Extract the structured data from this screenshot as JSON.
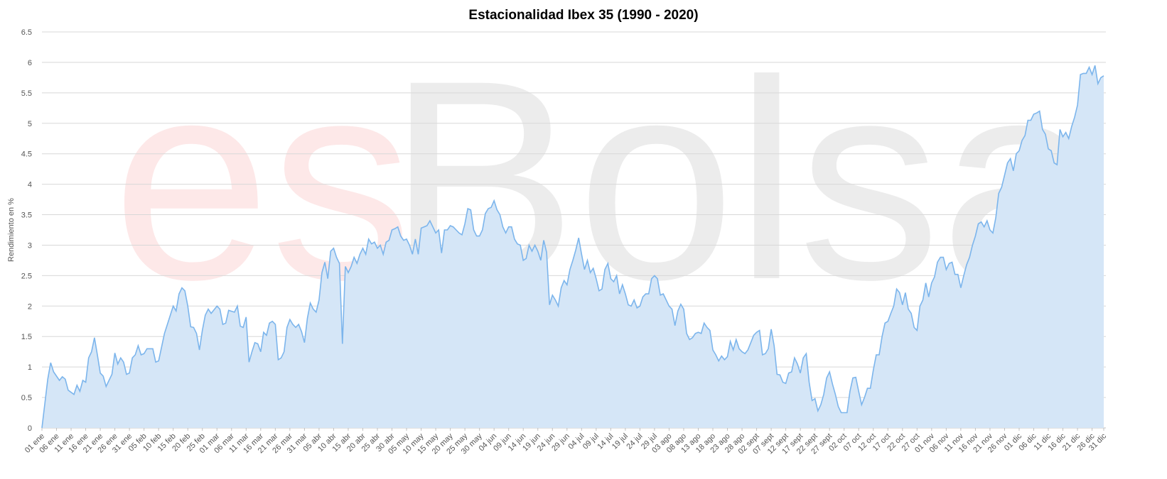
{
  "watermark": {
    "part1": "es",
    "part2": "Bolsa",
    "color1": "#fde8e8",
    "color2": "#ececec"
  },
  "colors": {
    "line": "#7cb5ec",
    "area": "#d5e6f7",
    "grid": "#d8d8d8"
  },
  "chart_data": {
    "type": "area",
    "title": "Estacionalidad Ibex 35 (1990 - 2020)",
    "xlabel": "",
    "ylabel": "Rendimiento en %",
    "ylim": [
      0,
      6.5
    ],
    "yticks": [
      "0",
      "0.5",
      "1",
      "1.5",
      "2",
      "2.5",
      "3",
      "3.5",
      "4",
      "4.5",
      "5",
      "5.5",
      "6",
      "6.5"
    ],
    "grid": true,
    "categories": [
      "01 ene",
      "06 ene",
      "11 ene",
      "16 ene",
      "21 ene",
      "26 ene",
      "31 ene",
      "05 feb",
      "10 feb",
      "15 feb",
      "20 feb",
      "25 feb",
      "01 mar",
      "06 mar",
      "11 mar",
      "16 mar",
      "21 mar",
      "26 mar",
      "31 mar",
      "05 abr",
      "10 abr",
      "15 abr",
      "20 abr",
      "25 abr",
      "30 abr",
      "05 may",
      "10 may",
      "15 may",
      "20 may",
      "25 may",
      "30 may",
      "04 jun",
      "09 jun",
      "14 jun",
      "19 jun",
      "24 jun",
      "29 jun",
      "04 jul",
      "09 jul",
      "14 jul",
      "19 jul",
      "24 jul",
      "29 jul",
      "03 ago",
      "08 ago",
      "13 ago",
      "18 ago",
      "23 ago",
      "28 ago",
      "02 sept",
      "07 sept",
      "12 sept",
      "17 sept",
      "22 sept",
      "27 sept",
      "02 oct",
      "07 oct",
      "12 oct",
      "17 oct",
      "22 oct",
      "27 oct",
      "01 nov",
      "06 nov",
      "11 nov",
      "16 nov",
      "21 nov",
      "26 nov",
      "01 dic",
      "06 dic",
      "11 dic",
      "16 dic",
      "21 dic",
      "26 dic",
      "31 dic"
    ],
    "keypoints": [
      [
        0,
        0.0
      ],
      [
        2,
        0.8
      ],
      [
        3,
        1.07
      ],
      [
        4,
        0.92
      ],
      [
        6,
        0.78
      ],
      [
        7,
        0.84
      ],
      [
        8,
        0.8
      ],
      [
        9,
        0.62
      ],
      [
        11,
        0.55
      ],
      [
        12,
        0.7
      ],
      [
        13,
        0.6
      ],
      [
        14,
        0.78
      ],
      [
        15,
        0.75
      ],
      [
        16,
        1.15
      ],
      [
        17,
        1.25
      ],
      [
        18,
        1.48
      ],
      [
        19,
        1.2
      ],
      [
        20,
        0.9
      ],
      [
        21,
        0.85
      ],
      [
        22,
        0.68
      ],
      [
        24,
        0.88
      ],
      [
        25,
        1.23
      ],
      [
        26,
        1.05
      ],
      [
        27,
        1.15
      ],
      [
        28,
        1.08
      ],
      [
        29,
        0.88
      ],
      [
        30,
        0.9
      ],
      [
        31,
        1.15
      ],
      [
        32,
        1.2
      ],
      [
        33,
        1.35
      ],
      [
        34,
        1.2
      ],
      [
        35,
        1.22
      ],
      [
        36,
        1.3
      ],
      [
        38,
        1.3
      ],
      [
        39,
        1.08
      ],
      [
        40,
        1.1
      ],
      [
        42,
        1.55
      ],
      [
        44,
        1.85
      ],
      [
        45,
        2.0
      ],
      [
        46,
        1.92
      ],
      [
        47,
        2.2
      ],
      [
        48,
        2.3
      ],
      [
        49,
        2.25
      ],
      [
        50,
        2.0
      ],
      [
        51,
        1.66
      ],
      [
        52,
        1.65
      ],
      [
        53,
        1.55
      ],
      [
        54,
        1.28
      ],
      [
        55,
        1.6
      ],
      [
        56,
        1.85
      ],
      [
        57,
        1.95
      ],
      [
        58,
        1.88
      ],
      [
        60,
        2.0
      ],
      [
        61,
        1.95
      ],
      [
        62,
        1.7
      ],
      [
        63,
        1.72
      ],
      [
        64,
        1.93
      ],
      [
        66,
        1.9
      ],
      [
        67,
        2.0
      ],
      [
        68,
        1.67
      ],
      [
        69,
        1.65
      ],
      [
        70,
        1.82
      ],
      [
        71,
        1.08
      ],
      [
        72,
        1.25
      ],
      [
        73,
        1.4
      ],
      [
        74,
        1.38
      ],
      [
        75,
        1.25
      ],
      [
        76,
        1.57
      ],
      [
        77,
        1.52
      ],
      [
        78,
        1.72
      ],
      [
        79,
        1.75
      ],
      [
        80,
        1.7
      ],
      [
        81,
        1.12
      ],
      [
        82,
        1.15
      ],
      [
        83,
        1.25
      ],
      [
        84,
        1.65
      ],
      [
        85,
        1.78
      ],
      [
        86,
        1.7
      ],
      [
        87,
        1.65
      ],
      [
        88,
        1.7
      ],
      [
        89,
        1.58
      ],
      [
        90,
        1.4
      ],
      [
        91,
        1.8
      ],
      [
        92,
        2.05
      ],
      [
        93,
        1.95
      ],
      [
        94,
        1.9
      ],
      [
        95,
        2.1
      ],
      [
        96,
        2.55
      ],
      [
        97,
        2.72
      ],
      [
        98,
        2.45
      ],
      [
        99,
        2.9
      ],
      [
        100,
        2.95
      ],
      [
        101,
        2.8
      ],
      [
        102,
        2.7
      ],
      [
        103,
        1.38
      ],
      [
        104,
        2.65
      ],
      [
        105,
        2.55
      ],
      [
        106,
        2.65
      ],
      [
        107,
        2.8
      ],
      [
        108,
        2.7
      ],
      [
        109,
        2.85
      ],
      [
        110,
        2.95
      ],
      [
        111,
        2.85
      ],
      [
        112,
        3.1
      ],
      [
        113,
        3.02
      ],
      [
        114,
        3.05
      ],
      [
        115,
        2.95
      ],
      [
        116,
        3.0
      ],
      [
        117,
        2.85
      ],
      [
        118,
        3.05
      ],
      [
        119,
        3.08
      ],
      [
        120,
        3.25
      ],
      [
        121,
        3.27
      ],
      [
        122,
        3.3
      ],
      [
        123,
        3.15
      ],
      [
        124,
        3.08
      ],
      [
        125,
        3.1
      ],
      [
        126,
        3.0
      ],
      [
        127,
        2.85
      ],
      [
        128,
        3.1
      ],
      [
        129,
        2.85
      ],
      [
        130,
        3.28
      ],
      [
        131,
        3.3
      ],
      [
        132,
        3.32
      ],
      [
        133,
        3.4
      ],
      [
        134,
        3.3
      ],
      [
        135,
        3.2
      ],
      [
        136,
        3.25
      ],
      [
        137,
        2.87
      ],
      [
        138,
        3.25
      ],
      [
        139,
        3.25
      ],
      [
        140,
        3.32
      ],
      [
        141,
        3.3
      ],
      [
        142,
        3.25
      ],
      [
        143,
        3.2
      ],
      [
        144,
        3.17
      ],
      [
        145,
        3.35
      ],
      [
        146,
        3.6
      ],
      [
        147,
        3.58
      ],
      [
        148,
        3.25
      ],
      [
        149,
        3.15
      ],
      [
        150,
        3.15
      ],
      [
        151,
        3.25
      ],
      [
        152,
        3.52
      ],
      [
        153,
        3.6
      ],
      [
        154,
        3.62
      ],
      [
        155,
        3.73
      ],
      [
        156,
        3.58
      ],
      [
        157,
        3.5
      ],
      [
        158,
        3.3
      ],
      [
        159,
        3.2
      ],
      [
        160,
        3.3
      ],
      [
        161,
        3.3
      ],
      [
        162,
        3.1
      ],
      [
        163,
        3.02
      ],
      [
        164,
        3.0
      ],
      [
        165,
        2.75
      ],
      [
        166,
        2.78
      ],
      [
        167,
        3.0
      ],
      [
        168,
        2.9
      ],
      [
        169,
        3.0
      ],
      [
        170,
        2.9
      ],
      [
        171,
        2.75
      ],
      [
        172,
        3.08
      ],
      [
        173,
        2.88
      ],
      [
        174,
        2.02
      ],
      [
        175,
        2.18
      ],
      [
        176,
        2.1
      ],
      [
        177,
        2.0
      ],
      [
        178,
        2.3
      ],
      [
        179,
        2.42
      ],
      [
        180,
        2.35
      ],
      [
        181,
        2.6
      ],
      [
        182,
        2.75
      ],
      [
        183,
        2.92
      ],
      [
        184,
        3.12
      ],
      [
        185,
        2.85
      ],
      [
        186,
        2.6
      ],
      [
        187,
        2.75
      ],
      [
        188,
        2.55
      ],
      [
        189,
        2.62
      ],
      [
        190,
        2.45
      ],
      [
        191,
        2.25
      ],
      [
        192,
        2.28
      ],
      [
        193,
        2.6
      ],
      [
        194,
        2.7
      ],
      [
        195,
        2.45
      ],
      [
        196,
        2.4
      ],
      [
        197,
        2.5
      ],
      [
        198,
        2.2
      ],
      [
        199,
        2.35
      ],
      [
        200,
        2.2
      ],
      [
        201,
        2.02
      ],
      [
        202,
        2.0
      ],
      [
        203,
        2.1
      ],
      [
        204,
        1.97
      ],
      [
        205,
        2.0
      ],
      [
        206,
        2.15
      ],
      [
        207,
        2.2
      ],
      [
        208,
        2.2
      ],
      [
        209,
        2.45
      ],
      [
        210,
        2.5
      ],
      [
        211,
        2.45
      ],
      [
        212,
        2.18
      ],
      [
        213,
        2.2
      ],
      [
        214,
        2.1
      ],
      [
        215,
        2.0
      ],
      [
        216,
        1.95
      ],
      [
        217,
        1.68
      ],
      [
        218,
        1.92
      ],
      [
        219,
        2.03
      ],
      [
        220,
        1.95
      ],
      [
        221,
        1.55
      ],
      [
        222,
        1.45
      ],
      [
        223,
        1.48
      ],
      [
        224,
        1.55
      ],
      [
        225,
        1.57
      ],
      [
        226,
        1.55
      ],
      [
        227,
        1.72
      ],
      [
        228,
        1.65
      ],
      [
        229,
        1.6
      ],
      [
        230,
        1.28
      ],
      [
        231,
        1.2
      ],
      [
        232,
        1.1
      ],
      [
        233,
        1.18
      ],
      [
        234,
        1.12
      ],
      [
        235,
        1.17
      ],
      [
        236,
        1.42
      ],
      [
        237,
        1.28
      ],
      [
        238,
        1.45
      ],
      [
        239,
        1.3
      ],
      [
        240,
        1.25
      ],
      [
        241,
        1.22
      ],
      [
        242,
        1.28
      ],
      [
        243,
        1.4
      ],
      [
        244,
        1.52
      ],
      [
        245,
        1.57
      ],
      [
        246,
        1.6
      ],
      [
        247,
        1.2
      ],
      [
        248,
        1.22
      ],
      [
        249,
        1.3
      ],
      [
        250,
        1.62
      ],
      [
        251,
        1.35
      ],
      [
        252,
        0.88
      ],
      [
        253,
        0.87
      ],
      [
        254,
        0.75
      ],
      [
        255,
        0.73
      ],
      [
        256,
        0.9
      ],
      [
        257,
        0.92
      ],
      [
        258,
        1.15
      ],
      [
        259,
        1.05
      ],
      [
        260,
        0.9
      ],
      [
        261,
        1.15
      ],
      [
        262,
        1.22
      ],
      [
        263,
        0.75
      ],
      [
        264,
        0.45
      ],
      [
        265,
        0.48
      ],
      [
        266,
        0.28
      ],
      [
        267,
        0.38
      ],
      [
        268,
        0.55
      ],
      [
        269,
        0.82
      ],
      [
        270,
        0.92
      ],
      [
        271,
        0.72
      ],
      [
        272,
        0.55
      ],
      [
        273,
        0.35
      ],
      [
        274,
        0.25
      ],
      [
        275,
        0.25
      ],
      [
        276,
        0.25
      ],
      [
        277,
        0.6
      ],
      [
        278,
        0.82
      ],
      [
        279,
        0.83
      ],
      [
        280,
        0.6
      ],
      [
        281,
        0.38
      ],
      [
        282,
        0.5
      ],
      [
        283,
        0.65
      ],
      [
        284,
        0.65
      ],
      [
        285,
        0.95
      ],
      [
        286,
        1.2
      ],
      [
        287,
        1.2
      ],
      [
        288,
        1.5
      ],
      [
        289,
        1.72
      ],
      [
        290,
        1.75
      ],
      [
        291,
        1.88
      ],
      [
        292,
        2.0
      ],
      [
        293,
        2.28
      ],
      [
        294,
        2.22
      ],
      [
        295,
        2.02
      ],
      [
        296,
        2.22
      ],
      [
        297,
        1.95
      ],
      [
        298,
        1.88
      ],
      [
        299,
        1.65
      ],
      [
        300,
        1.6
      ],
      [
        301,
        2.0
      ],
      [
        302,
        2.1
      ],
      [
        303,
        2.38
      ],
      [
        304,
        2.15
      ],
      [
        305,
        2.38
      ],
      [
        306,
        2.48
      ],
      [
        307,
        2.72
      ],
      [
        308,
        2.8
      ],
      [
        309,
        2.8
      ],
      [
        310,
        2.6
      ],
      [
        311,
        2.7
      ],
      [
        312,
        2.72
      ],
      [
        313,
        2.52
      ],
      [
        314,
        2.52
      ],
      [
        315,
        2.3
      ],
      [
        316,
        2.5
      ],
      [
        317,
        2.68
      ],
      [
        318,
        2.8
      ],
      [
        319,
        3.0
      ],
      [
        320,
        3.15
      ],
      [
        321,
        3.35
      ],
      [
        322,
        3.38
      ],
      [
        323,
        3.3
      ],
      [
        324,
        3.4
      ],
      [
        325,
        3.25
      ],
      [
        326,
        3.2
      ],
      [
        327,
        3.45
      ],
      [
        328,
        3.85
      ],
      [
        329,
        3.95
      ],
      [
        330,
        4.15
      ],
      [
        331,
        4.35
      ],
      [
        332,
        4.42
      ],
      [
        333,
        4.22
      ],
      [
        334,
        4.5
      ],
      [
        335,
        4.55
      ],
      [
        336,
        4.72
      ],
      [
        337,
        4.8
      ],
      [
        338,
        5.05
      ],
      [
        339,
        5.05
      ],
      [
        340,
        5.15
      ],
      [
        341,
        5.17
      ],
      [
        342,
        5.2
      ],
      [
        343,
        4.9
      ],
      [
        344,
        4.82
      ],
      [
        345,
        4.58
      ],
      [
        346,
        4.55
      ],
      [
        347,
        4.35
      ],
      [
        348,
        4.32
      ],
      [
        349,
        4.9
      ],
      [
        350,
        4.78
      ],
      [
        351,
        4.85
      ],
      [
        352,
        4.75
      ],
      [
        353,
        4.95
      ],
      [
        354,
        5.1
      ],
      [
        355,
        5.3
      ],
      [
        356,
        5.8
      ],
      [
        357,
        5.82
      ],
      [
        358,
        5.82
      ],
      [
        359,
        5.92
      ],
      [
        360,
        5.8
      ],
      [
        361,
        5.95
      ],
      [
        362,
        5.65
      ],
      [
        363,
        5.75
      ],
      [
        364,
        5.78
      ]
    ]
  }
}
